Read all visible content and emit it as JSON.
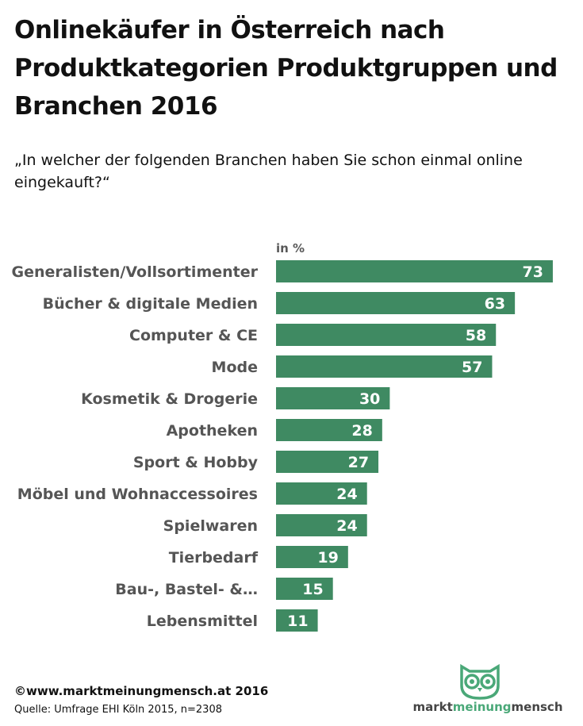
{
  "title": "Onlinekäufer in Österreich nach Produktkategorien Produktgruppen und Branchen 2016",
  "subtitle": "„In welcher der folgenden Branchen haben Sie schon einmal online eingekauft?“",
  "colors": {
    "bar": "#3f8a62",
    "label": "#555555",
    "logo_accent": "#4aa878"
  },
  "chart_data": {
    "type": "bar",
    "orientation": "horizontal",
    "unit_label": "in %",
    "categories": [
      "Generalisten/Vollsortimenter",
      "Bücher & digitale Medien",
      "Computer & CE",
      "Mode",
      "Kosmetik & Drogerie",
      "Apotheken",
      "Sport & Hobby",
      "Möbel und Wohnaccessoires",
      "Spielwaren",
      "Tierbedarf",
      "Bau-, Bastel- &…",
      "Lebensmittel"
    ],
    "values": [
      73,
      63,
      58,
      57,
      30,
      28,
      27,
      24,
      24,
      19,
      15,
      11
    ],
    "xlim": [
      0,
      80
    ],
    "grid": false,
    "data_labels": true
  },
  "footer": {
    "copyright": "©www.marktmeinungmensch.at 2016",
    "source": "Quelle: Umfrage EHI Köln 2015, n=2308"
  },
  "logo": {
    "part1": "markt",
    "part2": "meinung",
    "part3": "mensch",
    "icon": "owl-icon"
  }
}
